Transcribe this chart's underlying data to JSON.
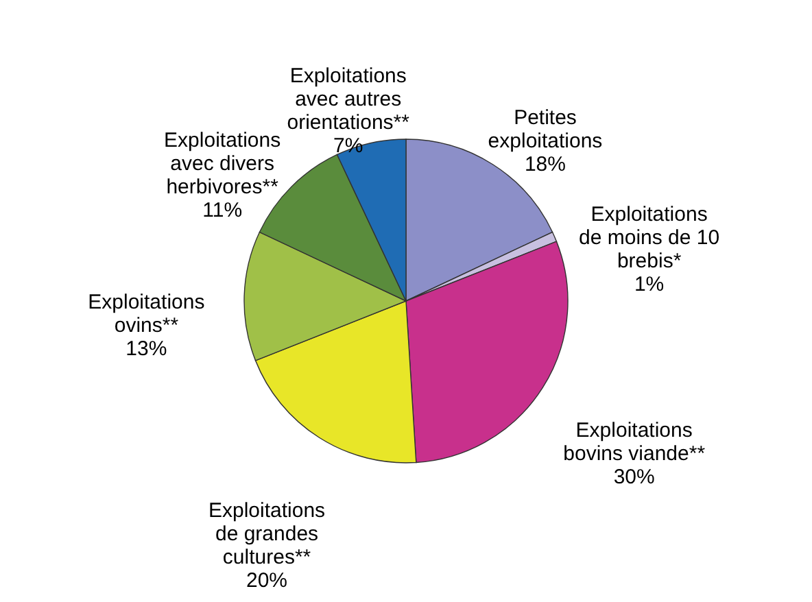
{
  "chart_data": {
    "type": "pie",
    "categories": [
      "Petites exploitations",
      "Exploitations de moins de 10 brebis*",
      "Exploitations bovins viande**",
      "Exploitations de grandes cultures**",
      "Exploitations ovins**",
      "Exploitations avec divers herbivores**",
      "Exploitations avec autres orientations**"
    ],
    "values": [
      18,
      1,
      30,
      20,
      13,
      11,
      7
    ],
    "value_labels": [
      "18%",
      "1%",
      "30%",
      "20%",
      "13%",
      "11%",
      "7%"
    ],
    "colors": [
      "#8c8fc8",
      "#c8c0e0",
      "#c8308c",
      "#e8e628",
      "#a0c048",
      "#5a8c3c",
      "#1f6cb4"
    ]
  }
}
